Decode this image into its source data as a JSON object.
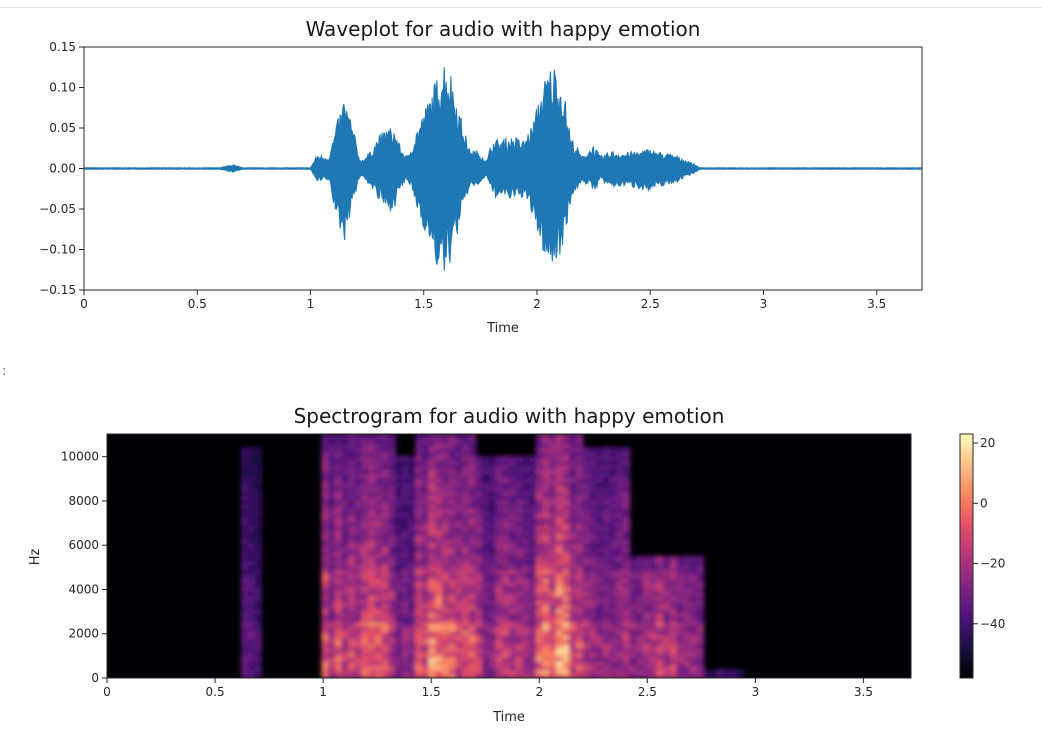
{
  "cell_marker": ":",
  "colors": {
    "wave": "#1f77b4",
    "axis": "#262626"
  },
  "chart_data": [
    {
      "type": "line",
      "title": "Waveplot for audio with happy emotion",
      "xlabel": "Time",
      "ylabel": "",
      "xlim": [
        0,
        3.7
      ],
      "ylim": [
        -0.15,
        0.15
      ],
      "x_ticks": [
        0,
        0.5,
        1,
        1.5,
        2,
        2.5,
        3,
        3.5
      ],
      "x_tick_labels": [
        "0",
        "0.5",
        "1",
        "1.5",
        "2",
        "2.5",
        "3",
        "3.5"
      ],
      "y_ticks": [
        0.15,
        0.1,
        0.05,
        0.0,
        -0.05,
        -0.1,
        -0.15
      ],
      "y_tick_labels": [
        "0.15",
        "0.10",
        "0.05",
        "0.00",
        "−0.05",
        "−0.10",
        "−0.15"
      ],
      "series": [
        {
          "color": "#1f77b4",
          "envelope": {
            "t": [
              0,
              0.6,
              0.64,
              0.66,
              0.7,
              1.0,
              1.03,
              1.08,
              1.12,
              1.15,
              1.18,
              1.22,
              1.26,
              1.3,
              1.34,
              1.37,
              1.4,
              1.43,
              1.47,
              1.52,
              1.56,
              1.59,
              1.62,
              1.66,
              1.7,
              1.75,
              1.78,
              1.8,
              1.9,
              1.94,
              1.98,
              2.02,
              2.05,
              2.08,
              2.12,
              2.15,
              2.2,
              2.25,
              2.28,
              2.33,
              2.38,
              2.45,
              2.5,
              2.55,
              2.6,
              2.65,
              2.7,
              2.72,
              3.7
            ],
            "upper": [
              0.001,
              0.001,
              0.004,
              0.005,
              0.001,
              0.001,
              0.018,
              0.015,
              0.06,
              0.09,
              0.06,
              0.01,
              0.02,
              0.04,
              0.052,
              0.05,
              0.025,
              0.015,
              0.05,
              0.085,
              0.115,
              0.138,
              0.12,
              0.07,
              0.025,
              0.02,
              0.01,
              0.035,
              0.04,
              0.035,
              0.055,
              0.1,
              0.125,
              0.13,
              0.095,
              0.04,
              0.015,
              0.03,
              0.015,
              0.022,
              0.02,
              0.022,
              0.025,
              0.02,
              0.018,
              0.012,
              0.005,
              0.001,
              0.001
            ],
            "lower": [
              -0.001,
              -0.001,
              -0.004,
              -0.005,
              -0.001,
              -0.001,
              -0.018,
              -0.015,
              -0.07,
              -0.092,
              -0.05,
              -0.01,
              -0.02,
              -0.04,
              -0.055,
              -0.05,
              -0.025,
              -0.015,
              -0.05,
              -0.09,
              -0.125,
              -0.138,
              -0.115,
              -0.07,
              -0.025,
              -0.02,
              -0.01,
              -0.035,
              -0.04,
              -0.035,
              -0.06,
              -0.1,
              -0.12,
              -0.125,
              -0.09,
              -0.04,
              -0.015,
              -0.03,
              -0.015,
              -0.025,
              -0.022,
              -0.025,
              -0.03,
              -0.022,
              -0.02,
              -0.012,
              -0.005,
              -0.001,
              -0.001
            ]
          }
        }
      ]
    },
    {
      "type": "heatmap",
      "title": "Spectrogram for audio with happy emotion",
      "xlabel": "Time",
      "ylabel": "Hz",
      "xlim": [
        0,
        3.72
      ],
      "ylim": [
        0,
        11025
      ],
      "x_ticks": [
        0,
        0.5,
        1,
        1.5,
        2,
        2.5,
        3,
        3.5
      ],
      "x_tick_labels": [
        "0",
        "0.5",
        "1",
        "1.5",
        "2",
        "2.5",
        "3",
        "3.5"
      ],
      "y_ticks": [
        0,
        2000,
        4000,
        6000,
        8000,
        10000
      ],
      "y_tick_labels": [
        "0",
        "2000",
        "4000",
        "6000",
        "8000",
        "10000"
      ],
      "colormap": "magma",
      "colorbar": {
        "range": [
          -58,
          23
        ],
        "ticks": [
          20,
          0,
          -20,
          -40
        ],
        "tick_labels": [
          "20",
          "0",
          "−20",
          "−40"
        ]
      },
      "segments": [
        {
          "t0": 0.63,
          "t1": 0.7,
          "level": 0.32,
          "fmax": 10500
        },
        {
          "t0": 1.0,
          "t1": 1.32,
          "level": 0.58,
          "fmax": 11025
        },
        {
          "t0": 1.32,
          "t1": 1.42,
          "level": 0.42,
          "fmax": 10000
        },
        {
          "t0": 1.42,
          "t1": 1.72,
          "level": 0.7,
          "fmax": 11025
        },
        {
          "t0": 1.72,
          "t1": 1.98,
          "level": 0.5,
          "fmax": 10000
        },
        {
          "t0": 1.98,
          "t1": 2.2,
          "level": 0.72,
          "fmax": 11025
        },
        {
          "t0": 2.2,
          "t1": 2.42,
          "level": 0.45,
          "fmax": 10500
        },
        {
          "t0": 2.42,
          "t1": 2.75,
          "level": 0.5,
          "fmax": 5500
        },
        {
          "t0": 2.75,
          "t1": 2.95,
          "level": 0.2,
          "fmax": 400
        }
      ]
    }
  ]
}
